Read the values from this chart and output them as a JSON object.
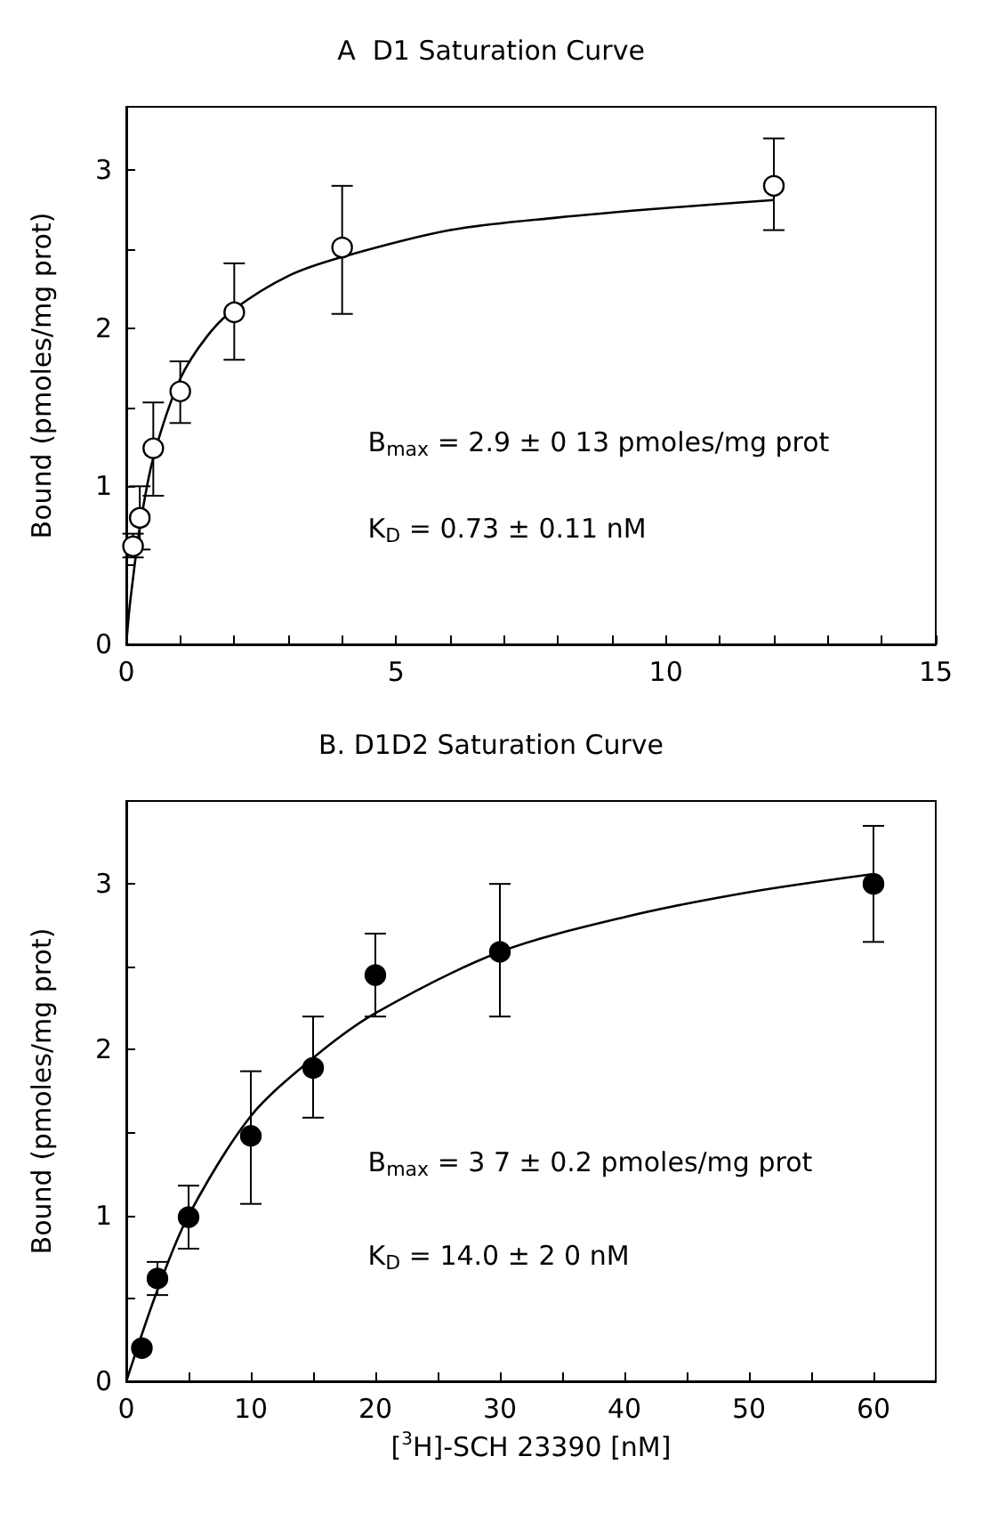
{
  "chart_data": [
    {
      "type": "scatter",
      "title": "A  D1 Saturation Curve",
      "ylabel": "Bound (pmoles/mg prot)",
      "xlim": [
        0,
        15
      ],
      "xticks": [
        0,
        {
          "value": 1,
          "label": null
        },
        {
          "value": 2,
          "label": null
        },
        {
          "value": 3,
          "label": null
        },
        {
          "value": 4,
          "label": null
        },
        5,
        {
          "value": 6,
          "label": null
        },
        {
          "value": 7,
          "label": null
        },
        {
          "value": 8,
          "label": null
        },
        {
          "value": 9,
          "label": null
        },
        10,
        {
          "value": 11,
          "label": null
        },
        {
          "value": 12,
          "label": null
        },
        {
          "value": 13,
          "label": null
        },
        {
          "value": 14,
          "label": null
        },
        15
      ],
      "ylim": [
        0,
        3.4
      ],
      "yticks": [
        0,
        {
          "value": 0.5,
          "label": null
        },
        1,
        {
          "value": 1.5,
          "label": null
        },
        2,
        {
          "value": 2.5,
          "label": null
        },
        3
      ],
      "grid": false,
      "annotations": [
        "B$_{max}$ = 2.9 ± 0 13 pmoles/mg prot",
        "K$_{D}$ = 0.73 ± 0.11 nM"
      ],
      "series": [
        {
          "type": "scatter",
          "color": "#ffffff",
          "marker": "circle",
          "x": [
            0.125,
            0.25,
            0.5,
            1,
            2,
            4,
            12
          ],
          "values": [
            0.62,
            0.8,
            1.24,
            1.6,
            2.1,
            2.51,
            2.9
          ],
          "errors": [
            [
              0.55,
              0.7
            ],
            [
              0.6,
              1.0
            ],
            [
              0.94,
              1.53
            ],
            [
              1.4,
              1.79
            ],
            [
              1.8,
              2.41
            ],
            [
              2.09,
              2.9
            ],
            [
              2.62,
              3.2
            ]
          ]
        },
        {
          "type": "line",
          "color": "#000000",
          "marker": "none",
          "line_style": "solid",
          "x": [
            0,
            0.05,
            0.1,
            0.25,
            0.5,
            1,
            1.5,
            2,
            3,
            4,
            6,
            8,
            10,
            12
          ],
          "values": [
            0,
            0.2,
            0.35,
            0.74,
            1.18,
            1.68,
            1.95,
            2.12,
            2.33,
            2.45,
            2.62,
            2.7,
            2.76,
            2.81
          ]
        }
      ]
    },
    {
      "type": "scatter",
      "title": "B. D1D2 Saturation Curve",
      "xlabel": "[$^{3}$H]-SCH 23390 [nM]",
      "ylabel": "Bound (pmoles/mg prot)",
      "xlim": [
        0,
        65
      ],
      "xticks": [
        0,
        {
          "value": 5,
          "label": null
        },
        10,
        {
          "value": 15,
          "label": null
        },
        20,
        {
          "value": 25,
          "label": null
        },
        30,
        {
          "value": 35,
          "label": null
        },
        40,
        {
          "value": 45,
          "label": null
        },
        50,
        {
          "value": 55,
          "label": null
        },
        60
      ],
      "ylim": [
        0,
        3.5
      ],
      "yticks": [
        0,
        {
          "value": 0.5,
          "label": null
        },
        1,
        {
          "value": 1.5,
          "label": null
        },
        2,
        {
          "value": 2.5,
          "label": null
        },
        3
      ],
      "grid": false,
      "annotations": [
        "B$_{max}$ = 3 7 ± 0.2 pmoles/mg prot",
        "K$_{D}$ = 14.0 ± 2 0 nM"
      ],
      "series": [
        {
          "type": "scatter",
          "color": "#000000",
          "marker": "circle",
          "x": [
            1.25,
            2.5,
            5,
            10,
            15,
            20,
            30,
            60
          ],
          "values": [
            0.2,
            0.62,
            0.99,
            1.48,
            1.89,
            2.45,
            2.59,
            3.0
          ],
          "errors": [
            null,
            [
              0.52,
              0.72
            ],
            [
              0.8,
              1.18
            ],
            [
              1.07,
              1.87
            ],
            [
              1.59,
              2.2
            ],
            [
              2.2,
              2.7
            ],
            [
              2.2,
              3.0
            ],
            [
              2.65,
              3.35
            ]
          ]
        },
        {
          "type": "line",
          "color": "#000000",
          "marker": "none",
          "line_style": "solid",
          "x": [
            0,
            2.5,
            5,
            10,
            15,
            20,
            30,
            40,
            50,
            60
          ],
          "values": [
            0,
            0.55,
            1.0,
            1.6,
            1.95,
            2.22,
            2.59,
            2.8,
            2.95,
            3.06
          ]
        }
      ]
    }
  ]
}
